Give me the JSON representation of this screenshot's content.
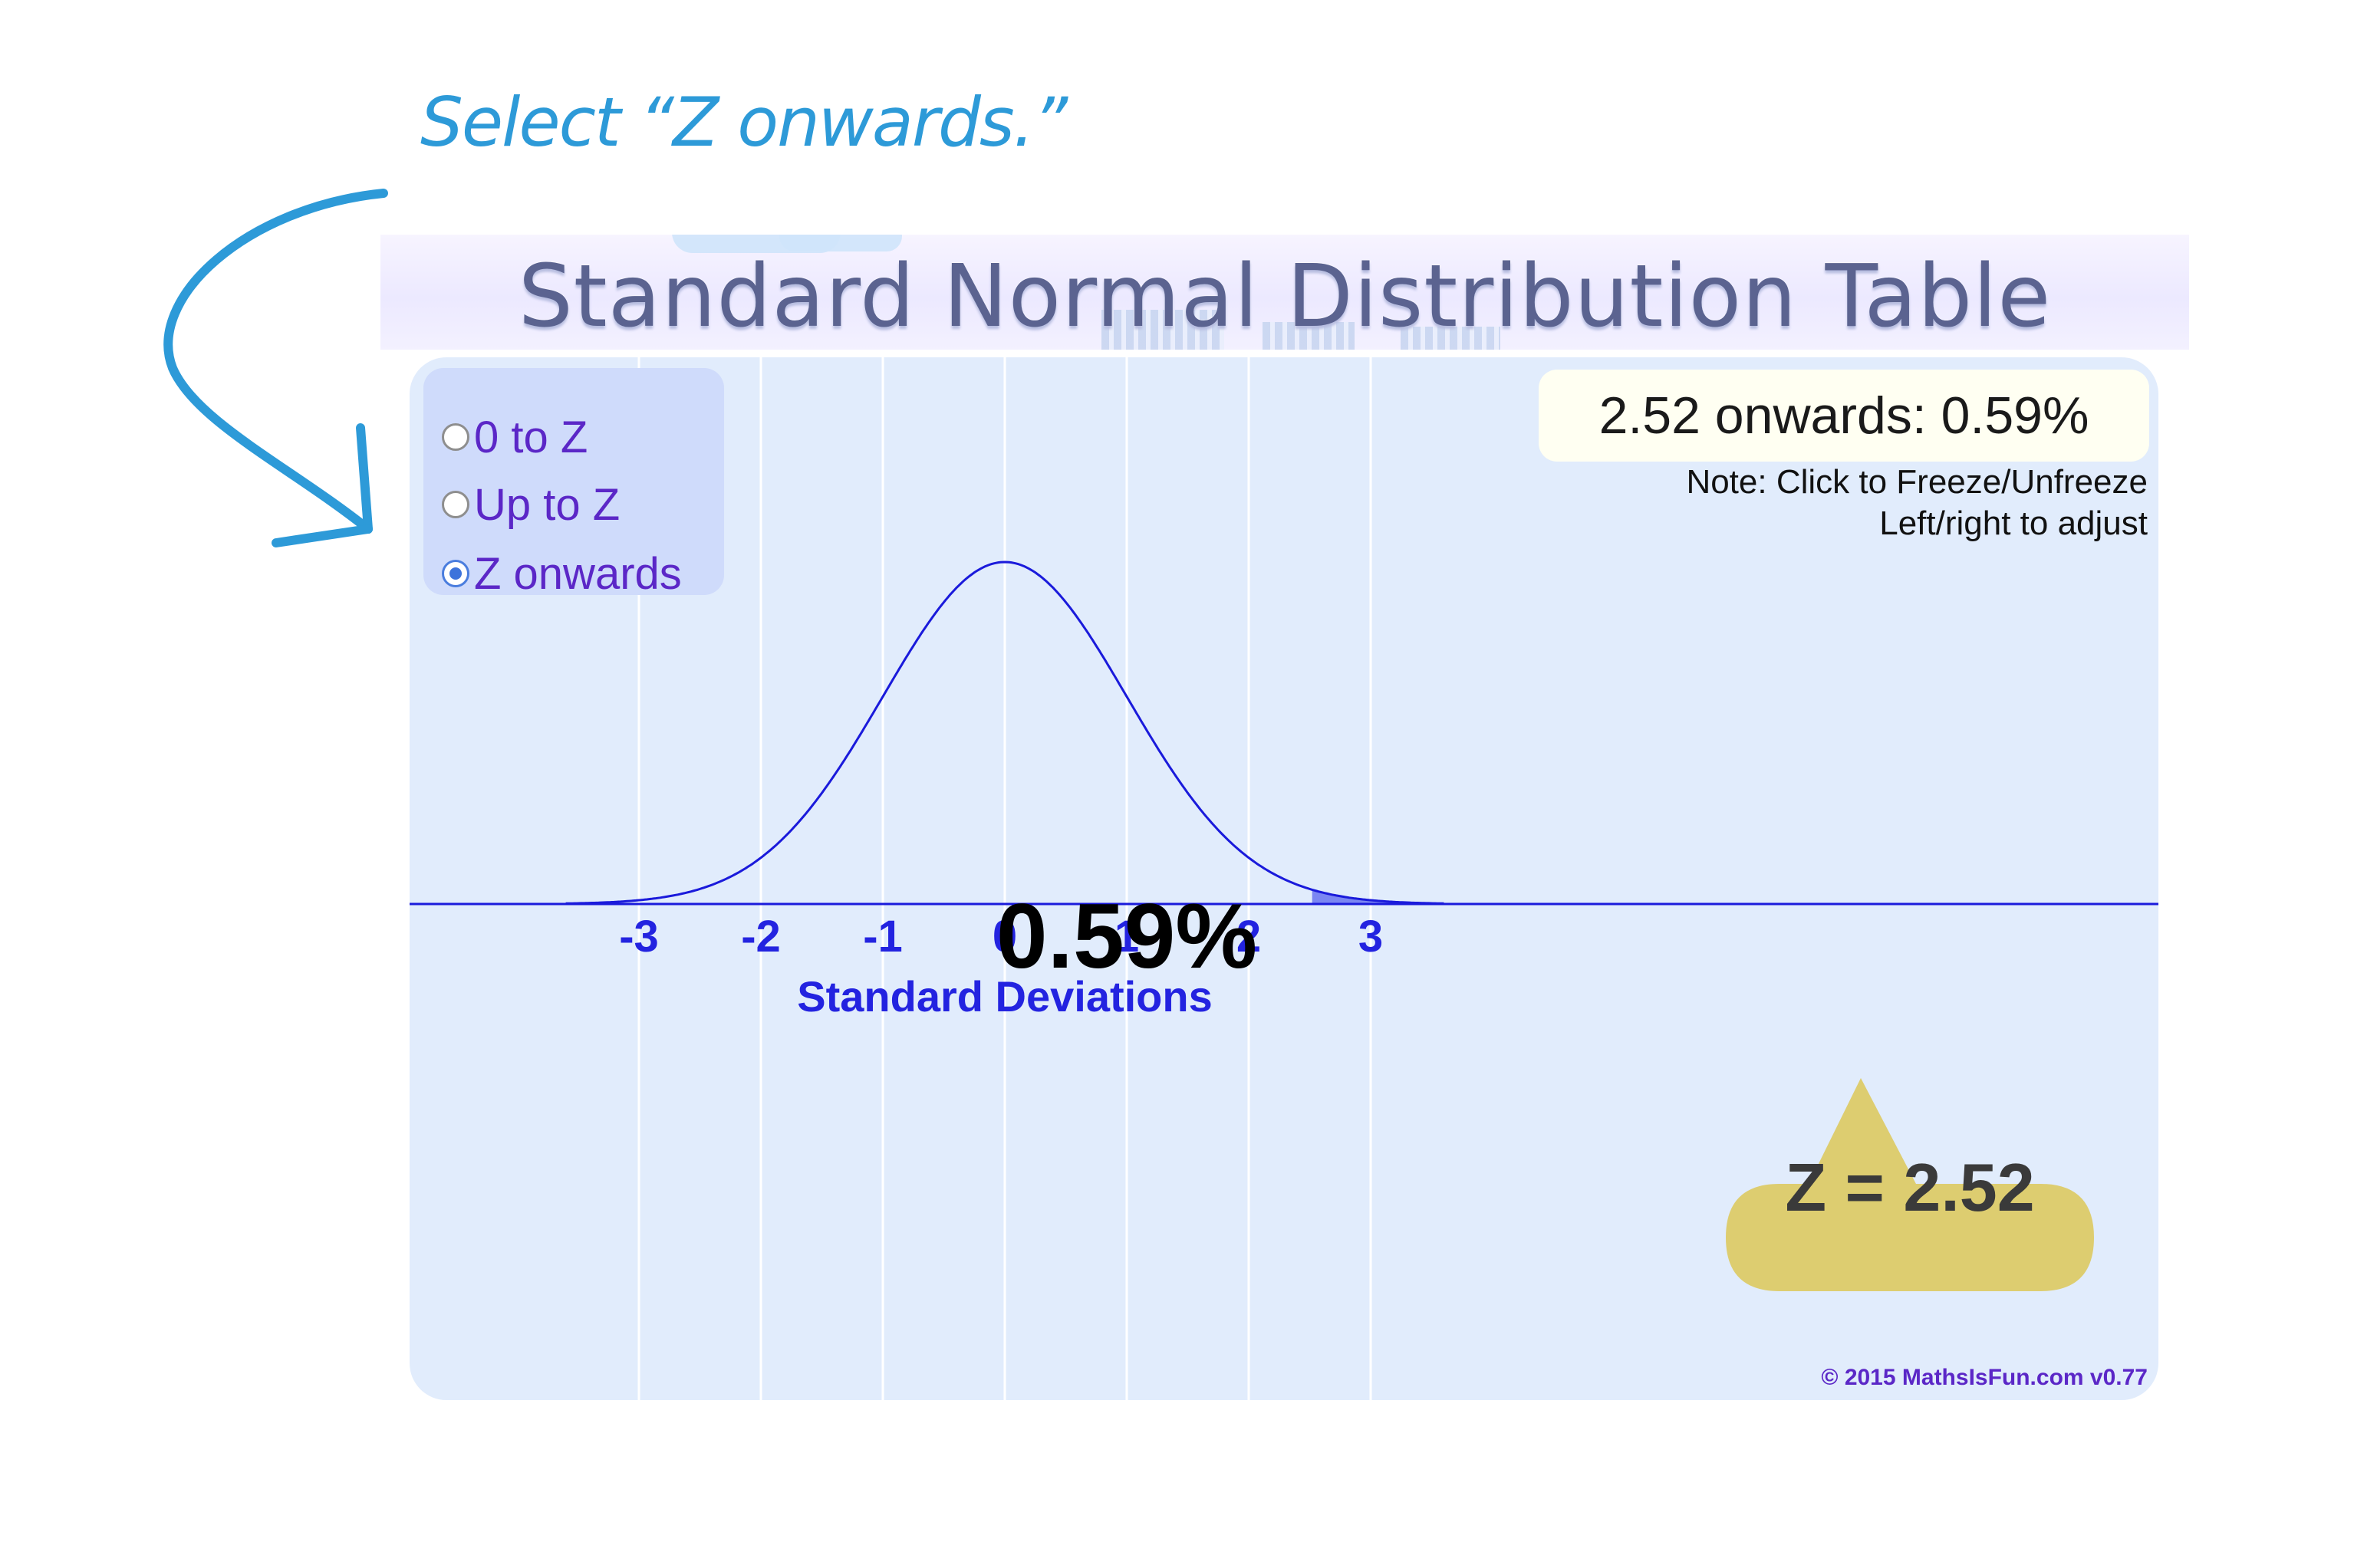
{
  "annotation": {
    "instruction": "Select “Z onwards.”",
    "arrow_icon": "curved-arrow-icon",
    "color": "#2d9ad8"
  },
  "header": {
    "title": "Standard Normal Distribution Table"
  },
  "mode_selector": {
    "options": [
      {
        "label": "0 to Z",
        "checked": false
      },
      {
        "label": "Up to Z",
        "checked": false
      },
      {
        "label": "Z onwards",
        "checked": true
      }
    ]
  },
  "result": {
    "text": "2.52 onwards: 0.59%",
    "note_line1": "Note: Click to Freeze/Unfreeze",
    "note_line2": "Left/right to adjust"
  },
  "area_label": "0.59%",
  "z_marker": {
    "text": "Z = 2.52",
    "color": "#ddcd70"
  },
  "copyright": "© 2015 MathsIsFun.com v0.77",
  "colors": {
    "curve": "#1a1adb",
    "shade": "#7b86f2",
    "axis_text": "#2323e0",
    "panel_bg": "#e1ecfc"
  },
  "chart_data": {
    "type": "area",
    "title": "Standard Normal Distribution Table",
    "xlabel": "Standard Deviations",
    "ylabel": "",
    "xlim": [
      -3.6,
      3.6
    ],
    "xticks": [
      -3,
      -2,
      -1,
      0,
      1,
      2,
      3
    ],
    "xtick_labels": [
      "-3",
      "-2",
      "-1",
      "0",
      "1",
      "2",
      "3"
    ],
    "grid": true,
    "series": [
      {
        "function": "standard normal pdf",
        "mean": 0,
        "sd": 1
      }
    ],
    "shaded_region": {
      "from": 2.52,
      "to": 3.6,
      "area_percent": 0.59
    },
    "z": 2.52
  }
}
